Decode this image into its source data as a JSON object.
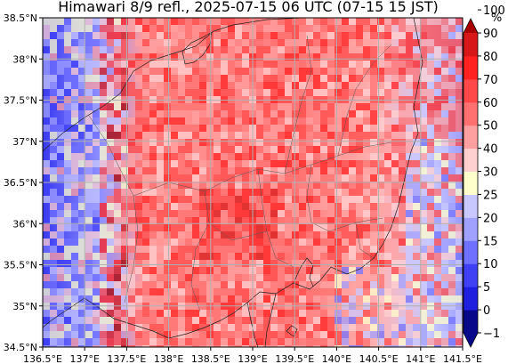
{
  "title": "Himawari 8/9 refl., 2025-07-15 06 UTC (07-15 15 JST)",
  "colorbar": {
    "unit": "%",
    "levels": [
      -1,
      0,
      5,
      10,
      15,
      20,
      25,
      30,
      40,
      50,
      60,
      70,
      80,
      90,
      100
    ],
    "tick_labels": [
      "−1",
      "0",
      "5",
      "10",
      "15",
      "20",
      "25",
      "30",
      "40",
      "50",
      "60",
      "70",
      "80",
      "90",
      "100"
    ],
    "colors": [
      "#08088a",
      "#1f1fe0",
      "#4040f5",
      "#7070ff",
      "#a0a0ff",
      "#c8c8ff",
      "#ffffcc",
      "#ffd0d0",
      "#ffa0a0",
      "#ff7070",
      "#ff4848",
      "#ff2020",
      "#d81818",
      "#a80000"
    ],
    "extend": "both"
  },
  "map": {
    "lon_range": [
      136.5,
      141.5
    ],
    "lat_range": [
      34.5,
      38.5
    ],
    "x_tick_labels": [
      "136.5°E",
      "137°E",
      "137.5°E",
      "138°E",
      "138.5°E",
      "139°E",
      "139.5°E",
      "140°E",
      "140.5°E",
      "141°E",
      "141.5°E"
    ],
    "y_tick_labels": [
      "34.5°N",
      "35°N",
      "35.5°N",
      "36°N",
      "36.5°N",
      "37°N",
      "37.5°N",
      "38°N",
      "38.5°N"
    ],
    "grid": true,
    "field": "reflectance"
  }
}
